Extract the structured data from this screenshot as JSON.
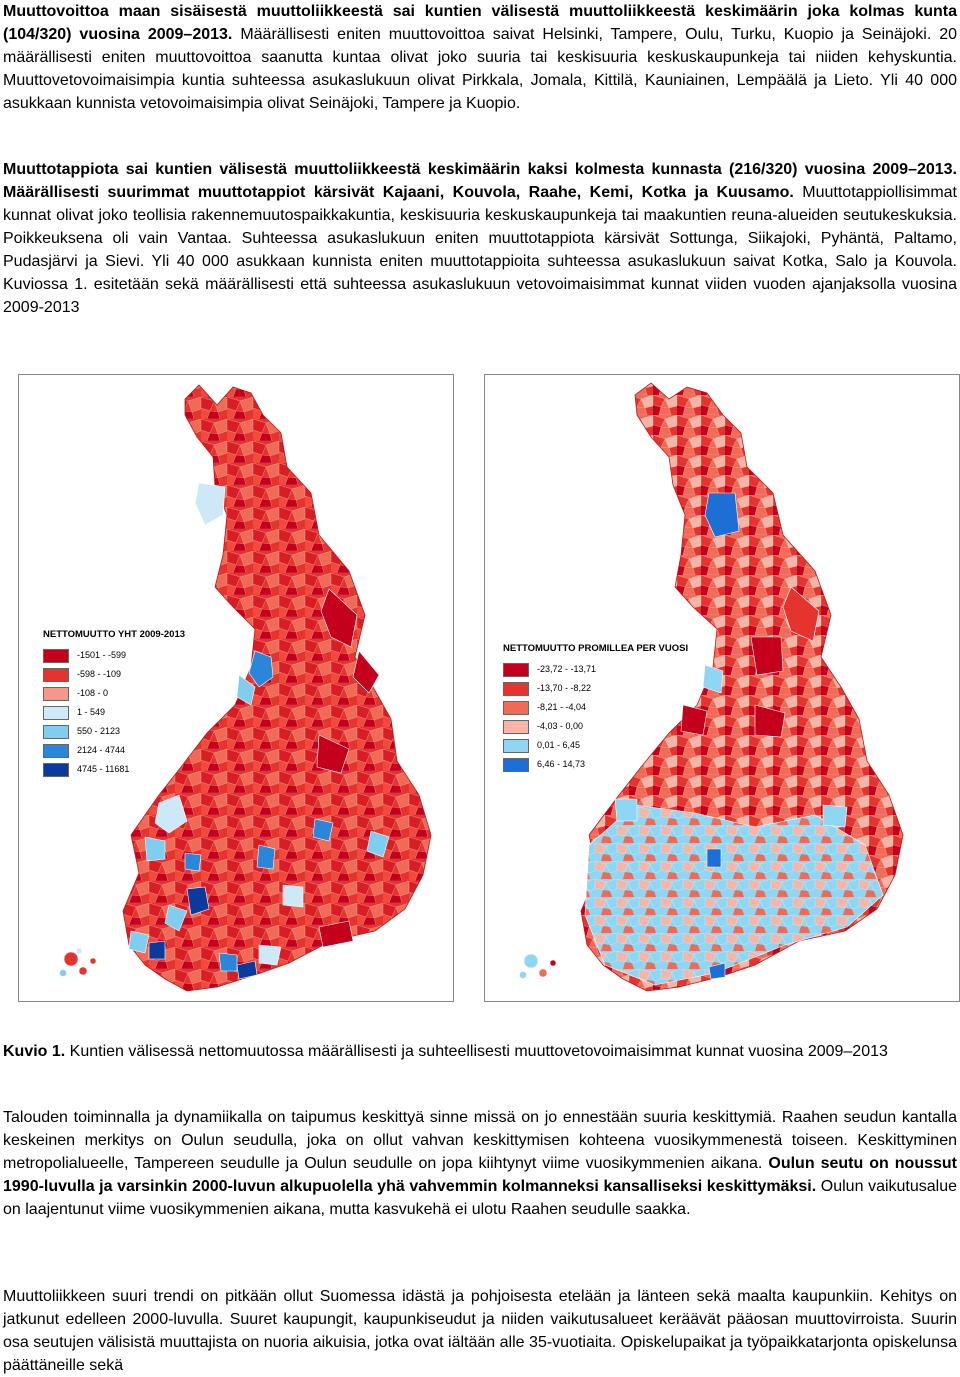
{
  "para1": {
    "bold": "Muuttovoittoa maan sisäisestä muuttoliikkeestä sai kuntien välisestä muuttoliikkeestä keskimäärin joka kolmas kunta (104/320) vuosina 2009–2013.",
    "text": " Määrällisesti eniten muuttovoittoa saivat Helsinki, Tampere, Oulu, Turku, Kuopio ja Seinäjoki. 20 määrällisesti eniten muuttovoittoa saanutta kuntaa olivat joko suuria tai keskisuuria keskuskaupunkeja tai niiden kehyskuntia. Muuttovetovoimaisimpia kuntia suhteessa asukaslukuun olivat Pirkkala, Jomala, Kittilä, Kauniainen, Lempäälä ja Lieto. Yli 40 000 asukkaan kunnista vetovoimaisimpia olivat Seinäjoki, Tampere ja Kuopio."
  },
  "para2": {
    "bold": "Muuttotappiota sai kuntien välisestä muuttoliikkeestä keskimäärin kaksi kolmesta kunnasta (216/320) vuosina 2009–2013. Määrällisesti suurimmat muuttotappiot kärsivät Kajaani, Kouvola, Raahe, Kemi, Kotka ja Kuusamo.",
    "text": " Muuttotappiollisimmat kunnat olivat joko teollisia rakennemuutospaikkakuntia, keskisuuria keskuskaupunkeja tai maakuntien reuna-alueiden seutukeskuksia. Poikkeuksena oli vain Vantaa. Suhteessa asukaslukuun eniten muuttotappiota kärsivät Sottunga, Siikajoki, Pyhäntä, Paltamo, Pudasjärvi ja Sievi. Yli 40 000 asukkaan kunnista eniten muuttotappioita suhteessa asukaslukuun saivat Kotka, Salo ja Kouvola. Kuviossa 1. esitetään sekä määrällisesti että suhteessa asukaslukuun vetovoimaisimmat kunnat viiden vuoden ajanjaksolla vuosina 2009-2013"
  },
  "map1": {
    "legend_title": "NETTOMUUTTO YHT 2009-2013",
    "legend": [
      {
        "label": "-1501 - -599",
        "color": "#c4001c"
      },
      {
        "label": "-598 - -109",
        "color": "#e5342e"
      },
      {
        "label": "-108 - 0",
        "color": "#f5978a"
      },
      {
        "label": "1 - 549",
        "color": "#cde9f8"
      },
      {
        "label": "550 - 2123",
        "color": "#7fcdef"
      },
      {
        "label": "2124 - 4744",
        "color": "#2a86d8"
      },
      {
        "label": "4745 - 11681",
        "color": "#0b3a9e"
      }
    ]
  },
  "map2": {
    "legend_title": "NETTOMUUTTO PROMILLEA PER VUOSI",
    "legend": [
      {
        "label": "-23,72 - -13,71",
        "color": "#c4001c"
      },
      {
        "label": "-13,70 - -8,22",
        "color": "#e5342e"
      },
      {
        "label": "-8,21 - -4,04",
        "color": "#f06a56"
      },
      {
        "label": "-4,03 - 0,00",
        "color": "#f8b4a6"
      },
      {
        "label": "0,01 - 6,45",
        "color": "#8fd6f2"
      },
      {
        "label": "6,46 - 14,73",
        "color": "#1b6fd6"
      }
    ]
  },
  "caption": {
    "bold": "Kuvio 1.",
    "text": " Kuntien välisessä nettomuutossa määrällisesti ja suhteellisesti muuttovetovoimaisimmat kunnat vuosina 2009–2013"
  },
  "para3": {
    "text": "Talouden toiminnalla ja dynamiikalla on taipumus keskittyä sinne missä on jo ennestään suuria keskittymiä. Raahen seudun kantalla keskeinen merkitys on Oulun seudulla, joka on ollut vahvan keskittymisen kohteena vuosikymmenestä toiseen. Keskittyminen metropolialueelle, Tampereen seudulle ja Oulun seudulle on jopa kiihtynyt viime vuosikymmenien aikana. ",
    "bold": "Oulun seutu on noussut 1990-luvulla ja varsinkin 2000-luvun alkupuolella yhä vahvemmin kolmanneksi kansalliseksi keskittymäksi.",
    "text2": " Oulun vaikutusalue on laajentunut viime vuosikymmenien aikana, mutta kasvukehä ei ulotu Raahen seudulle saakka."
  },
  "para4": {
    "text": "Muuttoliikkeen suuri trendi on pitkään ollut Suomessa idästä ja pohjoisesta etelään ja länteen sekä maalta kaupunkiin. Kehitys on jatkunut edelleen 2000-luvulla. Suuret kaupungit, kaupunkiseudut ja niiden vaikutusalueet keräävät pääosan muuttovirroista.  Suurin osa seutujen välisistä muuttajista on nuoria aikuisia, jotka ovat iältään alle 35-vuotiaita. Opiskelupaikat ja työpaikkatarjonta opiskelunsa päättäneille sekä"
  }
}
